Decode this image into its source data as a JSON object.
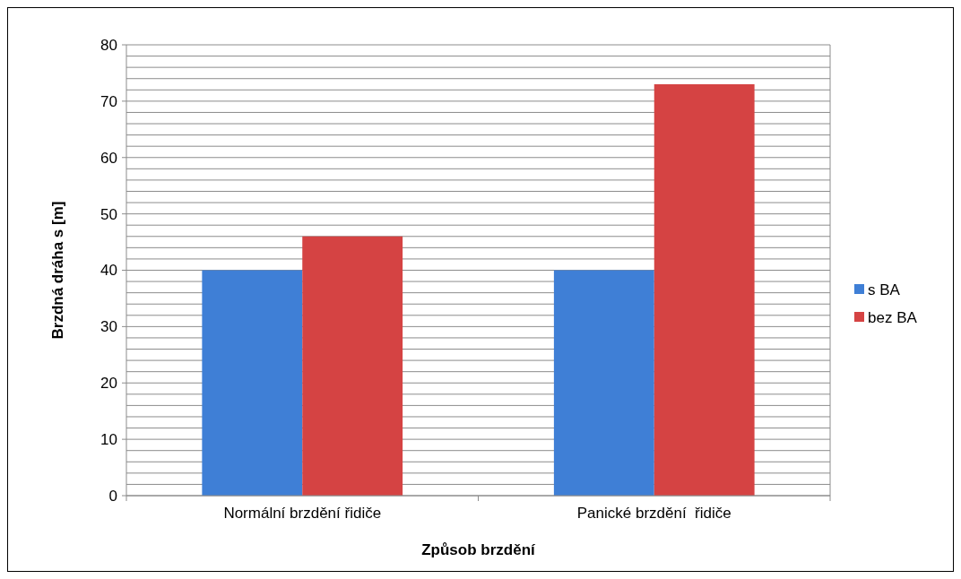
{
  "chart_data": {
    "type": "bar",
    "xlabel": "Způsob brzdění",
    "ylabel": "Brzdná dráha s [m]",
    "categories": [
      "Normální brzdění řidiče",
      "Panické brzdění  řidiče"
    ],
    "series": [
      {
        "name": "s BA",
        "color": "#3f7fd6",
        "values": [
          40,
          40
        ]
      },
      {
        "name": "bez BA",
        "color": "#d54343",
        "values": [
          46,
          73
        ]
      }
    ],
    "ylim": [
      0,
      80
    ],
    "yticks": [
      0,
      {
        "value": 2,
        "label": null
      },
      {
        "value": 4,
        "label": null
      },
      {
        "value": 6,
        "label": null
      },
      {
        "value": 8,
        "label": null
      },
      10,
      {
        "value": 12,
        "label": null
      },
      {
        "value": 14,
        "label": null
      },
      {
        "value": 16,
        "label": null
      },
      {
        "value": 18,
        "label": null
      },
      20,
      {
        "value": 22,
        "label": null
      },
      {
        "value": 24,
        "label": null
      },
      {
        "value": 26,
        "label": null
      },
      {
        "value": 28,
        "label": null
      },
      30,
      {
        "value": 32,
        "label": null
      },
      {
        "value": 34,
        "label": null
      },
      {
        "value": 36,
        "label": null
      },
      {
        "value": 38,
        "label": null
      },
      40,
      {
        "value": 42,
        "label": null
      },
      {
        "value": 44,
        "label": null
      },
      {
        "value": 46,
        "label": null
      },
      {
        "value": 48,
        "label": null
      },
      50,
      {
        "value": 52,
        "label": null
      },
      {
        "value": 54,
        "label": null
      },
      {
        "value": 56,
        "label": null
      },
      {
        "value": 58,
        "label": null
      },
      60,
      {
        "value": 62,
        "label": null
      },
      {
        "value": 64,
        "label": null
      },
      {
        "value": 66,
        "label": null
      },
      {
        "value": 68,
        "label": null
      },
      70,
      {
        "value": 72,
        "label": null
      },
      {
        "value": 74,
        "label": null
      },
      {
        "value": 76,
        "label": null
      },
      {
        "value": 78,
        "label": null
      },
      80
    ],
    "grid": true,
    "legend": "right"
  }
}
